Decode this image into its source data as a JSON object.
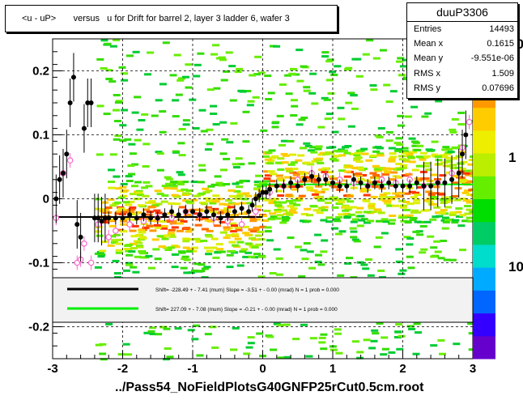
{
  "chart_data": {
    "type": "scatter",
    "title": "<u - uP>       versus   u for Drift for barrel 2, layer 3 ladder 6, wafer 3",
    "xlim": [
      -3,
      3
    ],
    "ylim": [
      -0.25,
      0.25
    ],
    "x_ticks": [
      "-3",
      "-2",
      "-1",
      "0",
      "1",
      "2",
      "3"
    ],
    "y_ticks": [
      "-0.2",
      "-0.1",
      "0",
      "0.1",
      "0.2"
    ],
    "z_ticks": [
      "10",
      "1",
      "10"
    ],
    "grid": true,
    "colors": {
      "profile_black": "#000000",
      "profile_pink": "#ff66cc",
      "fit_black": "#000000",
      "fit_green": "#00ee00"
    },
    "series": [
      {
        "marker": "filled-circle",
        "x": [
          -2.95,
          -2.9,
          -2.85,
          -2.8,
          -2.75,
          -2.7,
          -2.65,
          -2.6,
          -2.55,
          -2.5,
          -2.45,
          -2.4,
          -2.35,
          -2.3,
          -2.25,
          -2.2,
          -2.1,
          -2.0,
          -1.9,
          -1.8,
          -1.7,
          -1.6,
          -1.5,
          -1.4,
          -1.3,
          -1.2,
          -1.1,
          -1.0,
          -0.9,
          -0.8,
          -0.7,
          -0.6,
          -0.5,
          -0.4,
          -0.3,
          -0.2,
          -0.15,
          -0.1,
          -0.05,
          0.0,
          0.05,
          0.1,
          0.2,
          0.3,
          0.4,
          0.5,
          0.6,
          0.7,
          0.8,
          0.9,
          1.0,
          1.1,
          1.2,
          1.3,
          1.4,
          1.5,
          1.6,
          1.7,
          1.8,
          1.9,
          2.0,
          2.1,
          2.2,
          2.3,
          2.4,
          2.5,
          2.6,
          2.7,
          2.8,
          2.85,
          2.9
        ],
        "y": [
          0.0,
          0.03,
          0.04,
          0.07,
          0.15,
          0.19,
          -0.04,
          -0.06,
          0.11,
          0.15,
          0.15,
          -0.03,
          -0.03,
          -0.035,
          -0.03,
          -0.03,
          -0.03,
          -0.03,
          -0.025,
          -0.03,
          -0.025,
          -0.03,
          -0.03,
          -0.025,
          -0.02,
          -0.025,
          -0.02,
          -0.02,
          -0.025,
          -0.02,
          -0.025,
          -0.03,
          -0.025,
          -0.02,
          -0.015,
          -0.02,
          -0.01,
          0.0,
          0.005,
          0.01,
          0.01,
          0.015,
          0.02,
          0.02,
          0.025,
          0.02,
          0.03,
          0.035,
          0.03,
          0.03,
          0.025,
          0.02,
          0.02,
          0.03,
          0.025,
          0.02,
          0.025,
          0.02,
          0.025,
          0.02,
          0.02,
          0.02,
          0.025,
          0.02,
          0.02,
          0.025,
          0.025,
          0.03,
          0.04,
          0.07,
          0.1
        ]
      },
      {
        "marker": "open-circle",
        "x": [
          -2.95,
          -2.85,
          -2.75,
          -2.65,
          -2.6,
          -2.55,
          -2.45,
          -2.35,
          -2.2,
          -2.1,
          -1.9,
          -1.7,
          -1.5,
          -1.3,
          -1.1,
          -0.9,
          -0.7,
          -0.5,
          -0.3,
          -0.1,
          0.1,
          0.3,
          0.5,
          0.7,
          0.9,
          1.1,
          1.3,
          1.5,
          1.7,
          1.9,
          2.1,
          2.3,
          2.5,
          2.7,
          2.85,
          2.95
        ],
        "y": [
          -0.03,
          0.04,
          0.06,
          -0.1,
          -0.095,
          -0.07,
          -0.1,
          -0.04,
          -0.06,
          -0.05,
          -0.04,
          -0.035,
          -0.03,
          -0.03,
          -0.02,
          -0.025,
          -0.03,
          -0.035,
          -0.04,
          -0.02,
          0.01,
          0.02,
          0.03,
          0.04,
          0.035,
          0.03,
          0.025,
          0.02,
          0.03,
          0.025,
          0.03,
          0.02,
          0.025,
          0.04,
          0.08,
          0.12
        ]
      }
    ],
    "fit_lines": [
      {
        "label": "Shift=   -228.49 + - 7.41  (mum)  Slope =    -3.51 + - 0.00  (mrad)   N = 1 prob = 0.000",
        "color": "#000000",
        "x0": -3.0,
        "x1": 0.0,
        "y0": -0.0285,
        "y1": -0.0285
      },
      {
        "label": "Shift=   227.09 + - 7.08  (mum)  Slope =    -0.21 + - 0.00  (mrad)   N = 1 prob = 0.000",
        "color": "#00ee00",
        "x0": 0.0,
        "x1": 3.0,
        "y0": 0.0225,
        "y1": 0.0225
      }
    ]
  },
  "stats": {
    "name": "duuP3306",
    "entries_label": "Entries",
    "entries_value": "14493",
    "meanx_label": "Mean x",
    "meanx_value": "0.1615",
    "meany_label": "Mean y",
    "meany_value": "-9.551e-06",
    "rmsx_label": "RMS x",
    "rmsx_value": "1.509",
    "rmsy_label": "RMS y",
    "rmsy_value": "0.07696"
  },
  "footer": "../Pass54_NoFieldPlotsG40GNFP25rCut0.5cm.root"
}
